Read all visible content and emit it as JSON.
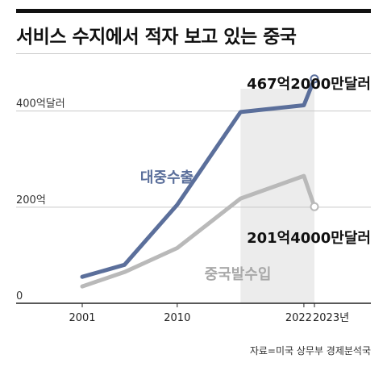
{
  "title": "서비스 수지에서 적자 보고 있는 중국",
  "source": "자료=미국 상무부 경제분석국",
  "colors": {
    "export": "#5b6f9b",
    "import": "#b9b9b9",
    "shade": "#ececec",
    "grid": "#c9c9c9",
    "axis": "#222222"
  },
  "chart_data": {
    "type": "line",
    "title": "서비스 수지에서 적자 보고 있는 중국",
    "xlabel": "",
    "ylabel": "",
    "ylim": [
      0,
      480
    ],
    "grid": true,
    "y_ticks": [
      {
        "value": 0,
        "label": "0"
      },
      {
        "value": 200,
        "label": "200억"
      },
      {
        "value": 400,
        "label": "400억달러"
      }
    ],
    "x_ticks": [
      {
        "value": 2001,
        "label": "2001"
      },
      {
        "value": 2010,
        "label": "2010"
      },
      {
        "value": 2022,
        "label": "2022"
      },
      {
        "value": 2023,
        "label": "2023년"
      }
    ],
    "shaded_span": [
      2016,
      2023
    ],
    "series": [
      {
        "name": "대중수출",
        "color": "#5b6f9b",
        "x": [
          2001,
          2005,
          2010,
          2016,
          2022,
          2023
        ],
        "values": [
          55,
          80,
          205,
          398,
          412,
          467
        ]
      },
      {
        "name": "중국발수입",
        "color": "#b9b9b9",
        "x": [
          2001,
          2005,
          2010,
          2016,
          2022,
          2023
        ],
        "values": [
          35,
          65,
          115,
          218,
          265,
          201
        ]
      }
    ],
    "annotations": [
      {
        "series": 0,
        "text": "467억2000만달러"
      },
      {
        "series": 1,
        "text": "201억4000만달러"
      }
    ]
  }
}
